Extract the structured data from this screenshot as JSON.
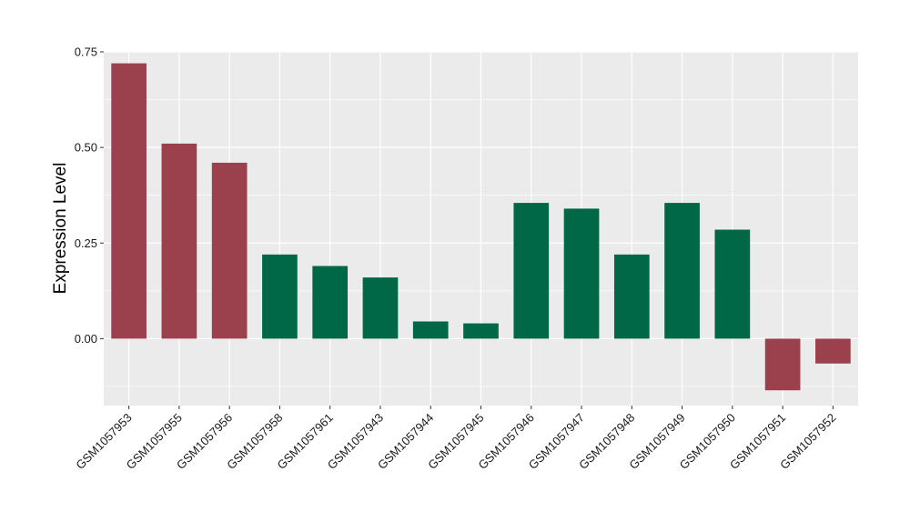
{
  "chart_data": {
    "type": "bar",
    "title": "",
    "xlabel": "",
    "ylabel": "Expression Level",
    "ylim": [
      -0.175,
      0.75
    ],
    "yticks": [
      0.0,
      0.25,
      0.5,
      0.75
    ],
    "ytick_labels": [
      "0.00",
      "0.25",
      "0.50",
      "0.75"
    ],
    "grid": true,
    "legend": "none",
    "colors": {
      "red": "#9b414e",
      "green": "#006846",
      "panel": "#ebebeb",
      "grid": "#ffffff"
    },
    "categories": [
      "GSM1057953",
      "GSM1057955",
      "GSM1057956",
      "GSM1057958",
      "GSM1057961",
      "GSM1057943",
      "GSM1057944",
      "GSM1057945",
      "GSM1057946",
      "GSM1057947",
      "GSM1057948",
      "GSM1057949",
      "GSM1057950",
      "GSM1057951",
      "GSM1057952"
    ],
    "values": [
      0.72,
      0.51,
      0.46,
      0.22,
      0.19,
      0.16,
      0.045,
      0.04,
      0.355,
      0.34,
      0.22,
      0.355,
      0.285,
      -0.135,
      -0.065
    ],
    "bar_colors": [
      "red",
      "red",
      "red",
      "green",
      "green",
      "green",
      "green",
      "green",
      "green",
      "green",
      "green",
      "green",
      "green",
      "red",
      "red"
    ]
  }
}
